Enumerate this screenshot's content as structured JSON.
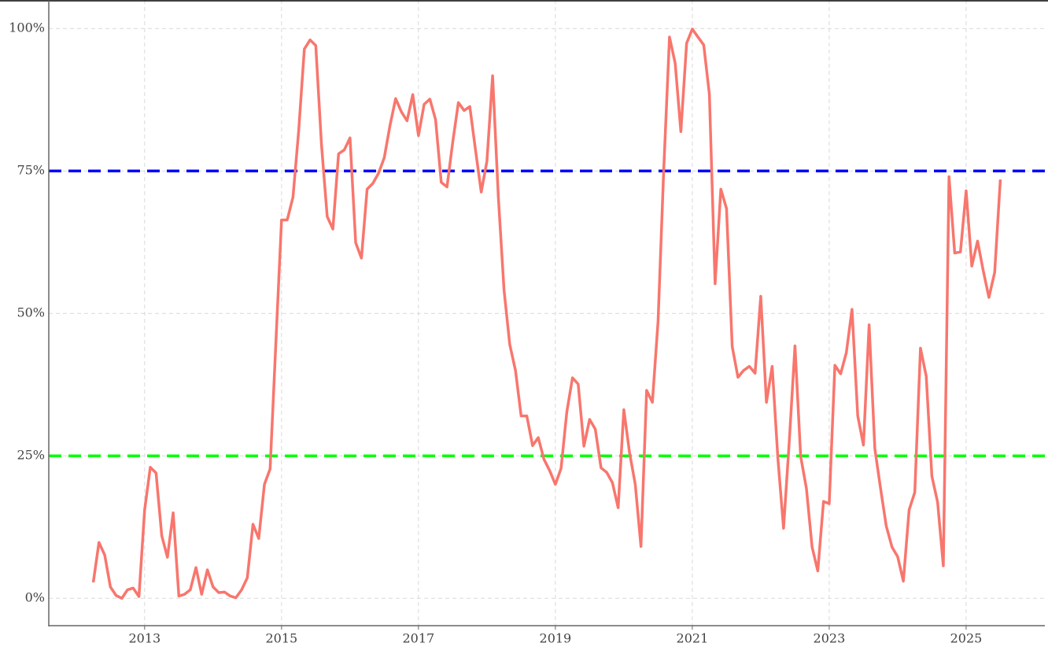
{
  "chart_data": {
    "type": "line",
    "color": "#f8766d",
    "grid": true,
    "xlim": [
      2011.6,
      2026.15
    ],
    "xticks": [
      2013,
      2015,
      2017,
      2019,
      2021,
      2023,
      2025
    ],
    "ylim": [
      -4.8,
      105
    ],
    "yticks": [
      {
        "value": 0,
        "label": "0%"
      },
      {
        "value": 25,
        "label": "25%"
      },
      {
        "value": 50,
        "label": "50%"
      },
      {
        "value": 75,
        "label": "75%"
      },
      {
        "value": 100,
        "label": "100%"
      }
    ],
    "hlines": [
      {
        "value": 75,
        "color": "#0000ff"
      },
      {
        "value": 25,
        "color": "#00ff00"
      }
    ],
    "x": [
      2012.25,
      2012.333,
      2012.417,
      2012.5,
      2012.583,
      2012.667,
      2012.75,
      2012.833,
      2012.917,
      2013,
      2013.083,
      2013.167,
      2013.25,
      2013.333,
      2013.417,
      2013.5,
      2013.583,
      2013.667,
      2013.75,
      2013.833,
      2013.917,
      2014,
      2014.083,
      2014.167,
      2014.25,
      2014.333,
      2014.417,
      2014.5,
      2014.583,
      2014.667,
      2014.75,
      2014.833,
      2014.917,
      2015,
      2015.083,
      2015.167,
      2015.25,
      2015.333,
      2015.417,
      2015.5,
      2015.583,
      2015.667,
      2015.75,
      2015.833,
      2015.917,
      2016,
      2016.083,
      2016.167,
      2016.25,
      2016.333,
      2016.417,
      2016.5,
      2016.583,
      2016.667,
      2016.75,
      2016.833,
      2016.917,
      2017,
      2017.083,
      2017.167,
      2017.25,
      2017.333,
      2017.417,
      2017.5,
      2017.583,
      2017.667,
      2017.75,
      2017.833,
      2017.917,
      2018,
      2018.083,
      2018.167,
      2018.25,
      2018.333,
      2018.417,
      2018.5,
      2018.583,
      2018.667,
      2018.75,
      2018.833,
      2018.917,
      2019,
      2019.083,
      2019.167,
      2019.25,
      2019.333,
      2019.417,
      2019.5,
      2019.583,
      2019.667,
      2019.75,
      2019.833,
      2019.917,
      2020,
      2020.083,
      2020.167,
      2020.25,
      2020.333,
      2020.417,
      2020.5,
      2020.583,
      2020.667,
      2020.75,
      2020.833,
      2020.917,
      2021,
      2021.083,
      2021.167,
      2021.25,
      2021.333,
      2021.417,
      2021.5,
      2021.583,
      2021.667,
      2021.75,
      2021.833,
      2021.917,
      2022,
      2022.083,
      2022.167,
      2022.25,
      2022.333,
      2022.417,
      2022.5,
      2022.583,
      2022.667,
      2022.75,
      2022.833,
      2022.917,
      2023,
      2023.083,
      2023.167,
      2023.25,
      2023.333,
      2023.417,
      2023.5,
      2023.583,
      2023.667,
      2023.75,
      2023.833,
      2023.917,
      2024,
      2024.083,
      2024.167,
      2024.25,
      2024.333,
      2024.417,
      2024.5,
      2024.583,
      2024.667,
      2024.75,
      2024.833,
      2024.917,
      2025,
      2025.083,
      2025.167,
      2025.25,
      2025.333,
      2025.417,
      2025.5
    ],
    "values": [
      2.8,
      9.8,
      7.6,
      2,
      0.5,
      0,
      1.5,
      1.8,
      0.3,
      15.5,
      23,
      22,
      11,
      7.2,
      15,
      0.4,
      0.7,
      1.5,
      5.4,
      0.7,
      5,
      2,
      1,
      1.1,
      0.4,
      0.1,
      1.5,
      3.6,
      13,
      10.5,
      20,
      22.7,
      44.8,
      66.4,
      66.4,
      70.4,
      82,
      96.4,
      98,
      97,
      79.7,
      67,
      64.8,
      78,
      78.7,
      80.8,
      62.4,
      59.7,
      71.8,
      72.8,
      74.6,
      77.3,
      82.9,
      87.7,
      85.4,
      83.8,
      88.4,
      81.2,
      86.7,
      87.6,
      84,
      73,
      72.2,
      80,
      87,
      85.6,
      86.3,
      78.7,
      71.3,
      76.7,
      91.7,
      70.4,
      54.1,
      44.6,
      40,
      32,
      32,
      26.8,
      28.2,
      24.4,
      22.4,
      20,
      22.8,
      32.7,
      38.7,
      37.6,
      26.7,
      31.4,
      29.7,
      22.9,
      22.1,
      20.3,
      15.9,
      33.1,
      25.6,
      20,
      9.1,
      36.5,
      34.4,
      48.6,
      75.3,
      98.5,
      93.9,
      81.9,
      97.4,
      99.9,
      98.5,
      97.1,
      88.4,
      55.2,
      71.8,
      68.4,
      44.2,
      38.8,
      40,
      40.7,
      39.5,
      53,
      34.4,
      40.7,
      24.6,
      12.3,
      27.6,
      44.3,
      24.9,
      19.3,
      9,
      4.8,
      17,
      16.6,
      40.9,
      39.4,
      43.1,
      50.7,
      32,
      26.9,
      48,
      26.2,
      19.3,
      12.7,
      9,
      7.3,
      3,
      15.5,
      18.6,
      43.9,
      39,
      21.4,
      16.9,
      5.7,
      74,
      60.6,
      60.8,
      71.5,
      58.3,
      62.7,
      57.5,
      52.8,
      57.2,
      73.5
    ]
  }
}
